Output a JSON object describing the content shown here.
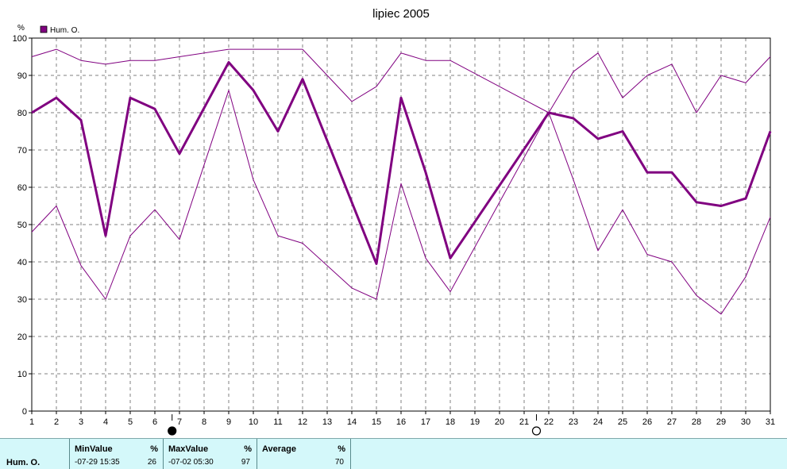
{
  "chart_data": {
    "type": "line",
    "title": "lipiec 2005",
    "ylabel": "%",
    "legend": [
      "Hum. O."
    ],
    "legend_position": "top-left",
    "grid": true,
    "ylim": [
      0,
      100
    ],
    "yticks": [
      "0",
      "10",
      "20",
      "30",
      "40",
      "50",
      "60",
      "70",
      "80",
      "90",
      "100"
    ],
    "x": [
      1,
      2,
      3,
      4,
      5,
      6,
      7,
      8,
      9,
      10,
      11,
      12,
      13,
      14,
      15,
      16,
      17,
      18,
      19,
      20,
      21,
      22,
      23,
      24,
      25,
      26,
      27,
      28,
      29,
      30,
      31
    ],
    "xticks": [
      "1",
      "2",
      "3",
      "4",
      "5",
      "6",
      "7",
      "8",
      "9",
      "10",
      "11",
      "12",
      "13",
      "14",
      "15",
      "16",
      "17",
      "18",
      "19",
      "20",
      "21",
      "22",
      "23",
      "24",
      "25",
      "26",
      "27",
      "28",
      "29",
      "30",
      "31"
    ],
    "series": [
      {
        "role": "max",
        "values": [
          95,
          97,
          94,
          93,
          94,
          94,
          95,
          null,
          97,
          97,
          97,
          97,
          null,
          83,
          87,
          96,
          94,
          94,
          null,
          null,
          null,
          80,
          91,
          96,
          84,
          90,
          93,
          80,
          90,
          88,
          95
        ]
      },
      {
        "role": "avg",
        "name": "Hum. O.",
        "values": [
          80,
          84,
          78,
          47,
          84,
          81,
          69,
          null,
          93.5,
          86,
          75,
          89,
          null,
          null,
          39.5,
          84,
          64,
          41,
          null,
          null,
          null,
          80,
          78.5,
          73,
          75,
          64,
          64,
          56,
          55,
          57,
          75
        ]
      },
      {
        "role": "min",
        "values": [
          48,
          55,
          39,
          30,
          47,
          54,
          46,
          null,
          86,
          62,
          47,
          45,
          null,
          33,
          30,
          61,
          41,
          32,
          null,
          null,
          null,
          80,
          62,
          43,
          54,
          42,
          40,
          31,
          26,
          36,
          52
        ]
      }
    ],
    "moon_phases": [
      {
        "day": 6.7,
        "phase": "full"
      },
      {
        "day": 21.5,
        "phase": "new"
      }
    ],
    "colors": {
      "line": "#800080",
      "legend_box": "#800080",
      "grid": "#808080"
    }
  },
  "stats": {
    "row_label": "Hum. O.",
    "min": {
      "header": "MinValue",
      "unit": "%",
      "time": "-07-29  15:35",
      "value": "26"
    },
    "max": {
      "header": "MaxValue",
      "unit": "%",
      "time": "-07-02  05:30",
      "value": "97"
    },
    "avg": {
      "header": "Average",
      "unit": "%",
      "value": "70"
    }
  }
}
